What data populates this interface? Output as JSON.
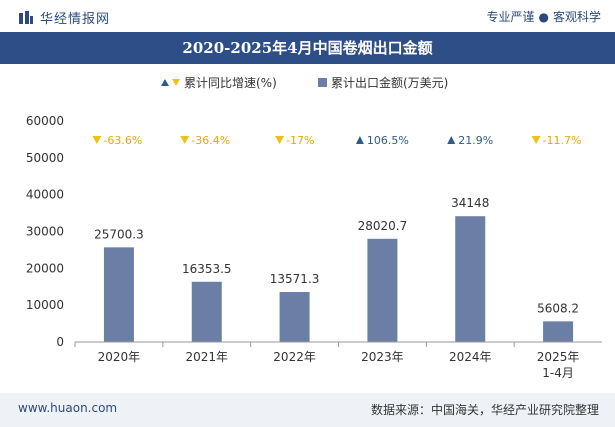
{
  "header": {
    "brand": "华经情报网",
    "slogan_left": "专业严谨",
    "slogan_right": "客观科学"
  },
  "title": "2020-2025年4月中国卷烟出口金额",
  "legend": {
    "growth": "累计同比增速(%)",
    "amount": "累计出口金额(万美元)"
  },
  "footer": {
    "website": "www.huaon.com",
    "source": "数据来源：中国海关，华经产业研究院整理"
  },
  "colors": {
    "bar": "#6b7ea6",
    "up": "#2e5a8c",
    "down": "#f2c012",
    "header_bg": "#2d4e86"
  },
  "chart_data": {
    "type": "bar",
    "categories": [
      "2020年",
      "2021年",
      "2022年",
      "2023年",
      "2024年",
      "2025年\n1-4月"
    ],
    "series": [
      {
        "name": "累计出口金额(万美元)",
        "values": [
          25700.3,
          16353.5,
          13571.3,
          28020.7,
          34148,
          5608.2
        ]
      },
      {
        "name": "累计同比增速(%)",
        "values": [
          -63.6,
          -36.4,
          -17,
          106.5,
          21.9,
          -11.7
        ]
      }
    ],
    "growth_labels": [
      "-63.6%",
      "-36.4%",
      "-17%",
      "106.5%",
      "21.9%",
      "-11.7%"
    ],
    "value_labels": [
      "25700.3",
      "16353.5",
      "13571.3",
      "28020.7",
      "34148",
      "5608.2"
    ],
    "ylim": [
      0,
      60000
    ],
    "yticks": [
      0,
      10000,
      20000,
      30000,
      40000,
      50000,
      60000
    ],
    "grid": false,
    "legend_position": "top-center"
  }
}
